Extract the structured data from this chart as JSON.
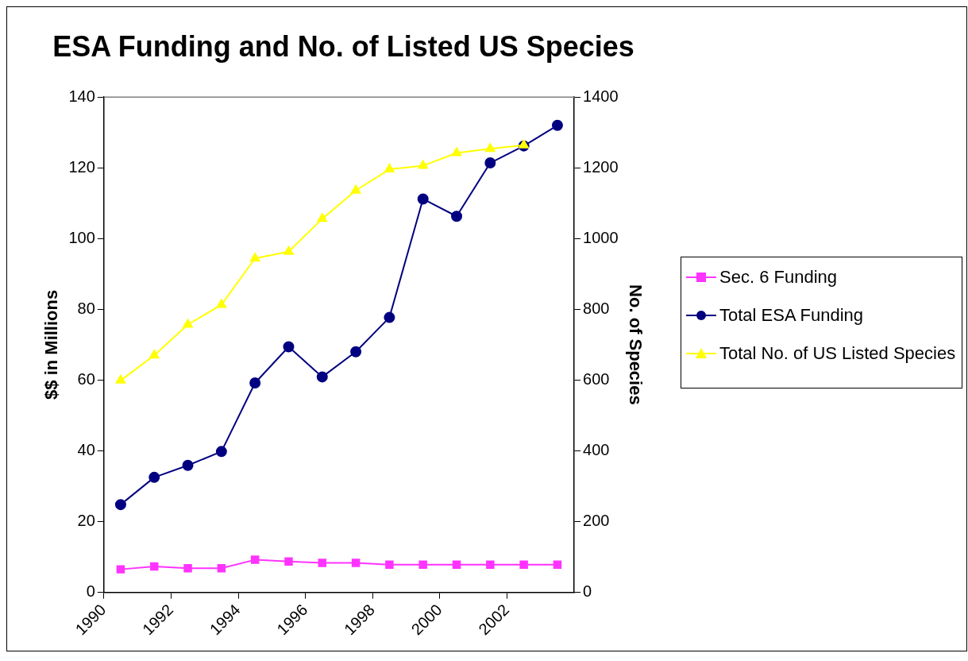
{
  "chart_data": {
    "type": "line",
    "title": "ESA Funding and No. of Listed US Species",
    "ylabel": "$$ in Millions",
    "y2label": "No. of Species",
    "x": [
      1990.5,
      1991.5,
      1992.5,
      1993.5,
      1994.5,
      1995.5,
      1996.5,
      1997.5,
      1998.5,
      1999.5,
      2000.5,
      2001.5,
      2002.5,
      2003.5
    ],
    "xlim": [
      1990,
      2004
    ],
    "xticks": [
      1990,
      1992,
      1994,
      1996,
      1998,
      2000,
      2002
    ],
    "ylim": [
      0,
      140
    ],
    "yticks": [
      0,
      20,
      40,
      60,
      80,
      100,
      120,
      140
    ],
    "y2lim": [
      0,
      1400
    ],
    "y2ticks": [
      0,
      200,
      400,
      600,
      800,
      1000,
      1200,
      1400
    ],
    "grid": false,
    "legend": "right",
    "line_style": "solid",
    "series": [
      {
        "name": "Sec. 6 Funding",
        "color": "#ff33ff",
        "marker": "square",
        "values": [
          6.5,
          7.3,
          6.8,
          6.8,
          9.2,
          8.7,
          8.3,
          8.3,
          7.8,
          7.8,
          7.8,
          7.8,
          7.8,
          7.8
        ]
      },
      {
        "name": "Total ESA Funding",
        "color": "#000080",
        "marker": "circle",
        "values": [
          24.8,
          32.5,
          35.9,
          39.8,
          59.2,
          69.4,
          60.9,
          68,
          77.7,
          111.2,
          106.3,
          121.4,
          126.2,
          132
        ]
      },
      {
        "name": "Total No. of US Listed Species",
        "color": "#ffff00",
        "marker": "triangle",
        "axis": "y2",
        "values": [
          599,
          670,
          757,
          813,
          944,
          963,
          1056,
          1136,
          1196,
          1206,
          1242,
          1254,
          1264,
          null
        ]
      }
    ]
  }
}
